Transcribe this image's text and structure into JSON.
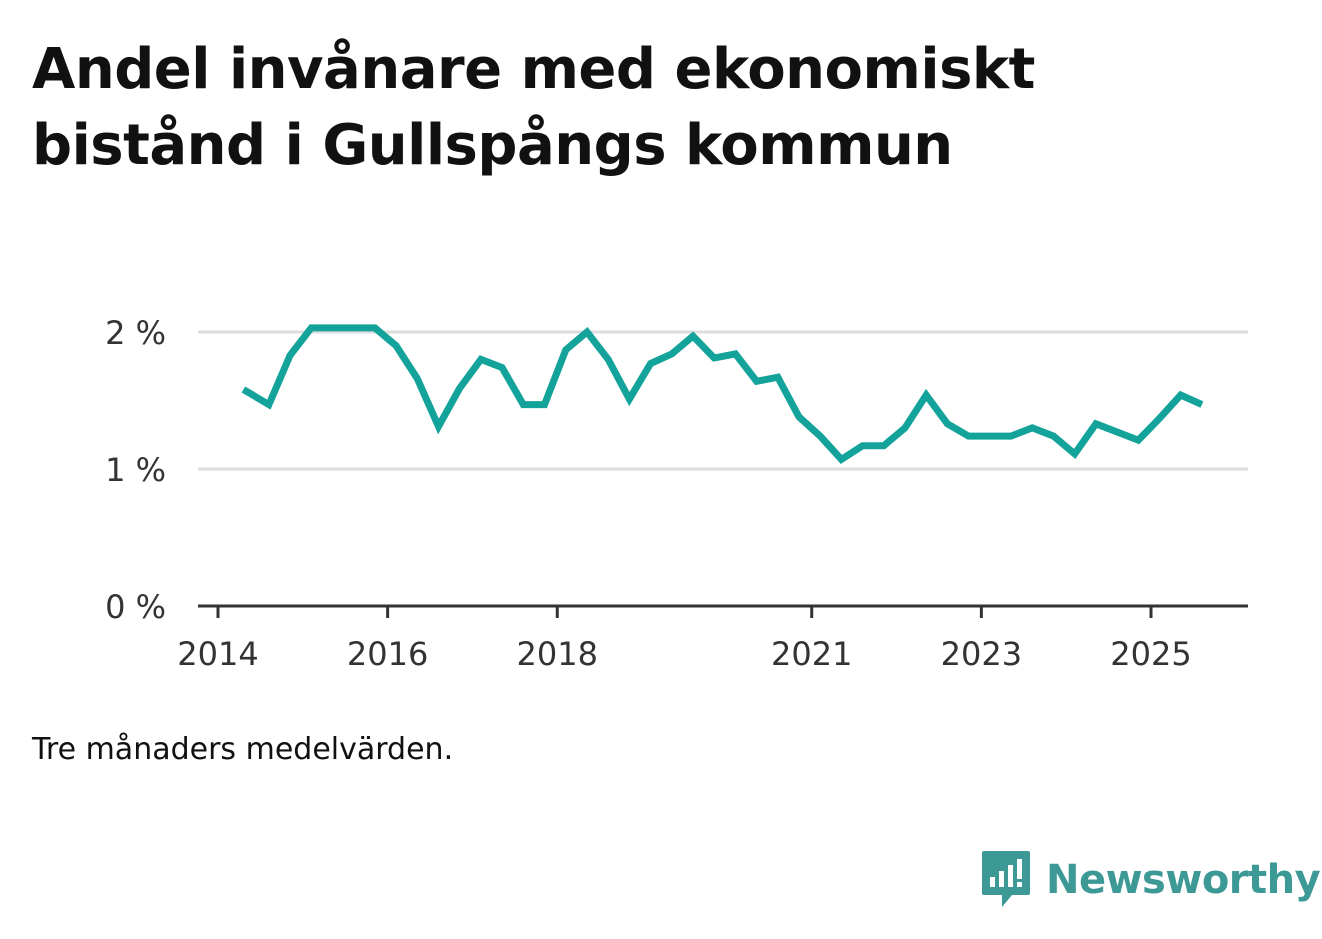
{
  "title": "Andel invånare med ekonomiskt bistånd i Gullspångs kommun",
  "note": "Tre månaders medelvärden.",
  "brand": {
    "name": "Newsworthy",
    "color": "#3d9996",
    "icon": "newsworthy-logo-icon"
  },
  "colors": {
    "line": "#13a39a",
    "grid": "#dddddd",
    "axis": "#333333"
  },
  "chart_data": {
    "type": "line",
    "title": "Andel invånare med ekonomiskt bistånd i Gullspångs kommun",
    "xlabel": "",
    "ylabel": "",
    "ylim": [
      0,
      2.2
    ],
    "xlim": [
      2014.0,
      2026.2
    ],
    "y_ticks": [
      0,
      1,
      2
    ],
    "y_tick_labels": [
      "0 %",
      "1 %",
      "2 %"
    ],
    "x_ticks": [
      2014,
      2016,
      2018,
      2021,
      2023,
      2025
    ],
    "x_tick_labels": [
      "2014",
      "2016",
      "2018",
      "2021",
      "2023",
      "2025"
    ],
    "grid": true,
    "series": [
      {
        "name": "Andel invånare med ekonomiskt bistånd",
        "unit": "%",
        "x": [
          2014.3,
          2014.6,
          2014.85,
          2015.1,
          2015.35,
          2015.6,
          2015.85,
          2016.1,
          2016.35,
          2016.6,
          2016.85,
          2017.1,
          2017.35,
          2017.6,
          2017.85,
          2018.1,
          2018.35,
          2018.6,
          2018.85,
          2019.1,
          2019.35,
          2019.6,
          2019.85,
          2020.1,
          2020.35,
          2020.6,
          2020.85,
          2021.1,
          2021.35,
          2021.6,
          2021.85,
          2022.1,
          2022.35,
          2022.6,
          2022.85,
          2023.1,
          2023.35,
          2023.6,
          2023.85,
          2024.1,
          2024.35,
          2024.6,
          2024.85,
          2025.1,
          2025.35,
          2025.6
        ],
        "values": [
          1.58,
          1.47,
          1.83,
          2.03,
          2.03,
          2.03,
          2.03,
          1.9,
          1.66,
          1.31,
          1.59,
          1.8,
          1.74,
          1.47,
          1.47,
          1.87,
          2.0,
          1.8,
          1.51,
          1.77,
          1.84,
          1.97,
          1.81,
          1.84,
          1.64,
          1.67,
          1.38,
          1.24,
          1.07,
          1.17,
          1.17,
          1.3,
          1.54,
          1.33,
          1.24,
          1.24,
          1.24,
          1.3,
          1.24,
          1.11,
          1.33,
          1.27,
          1.21,
          1.37,
          1.54,
          1.47
        ]
      }
    ]
  }
}
